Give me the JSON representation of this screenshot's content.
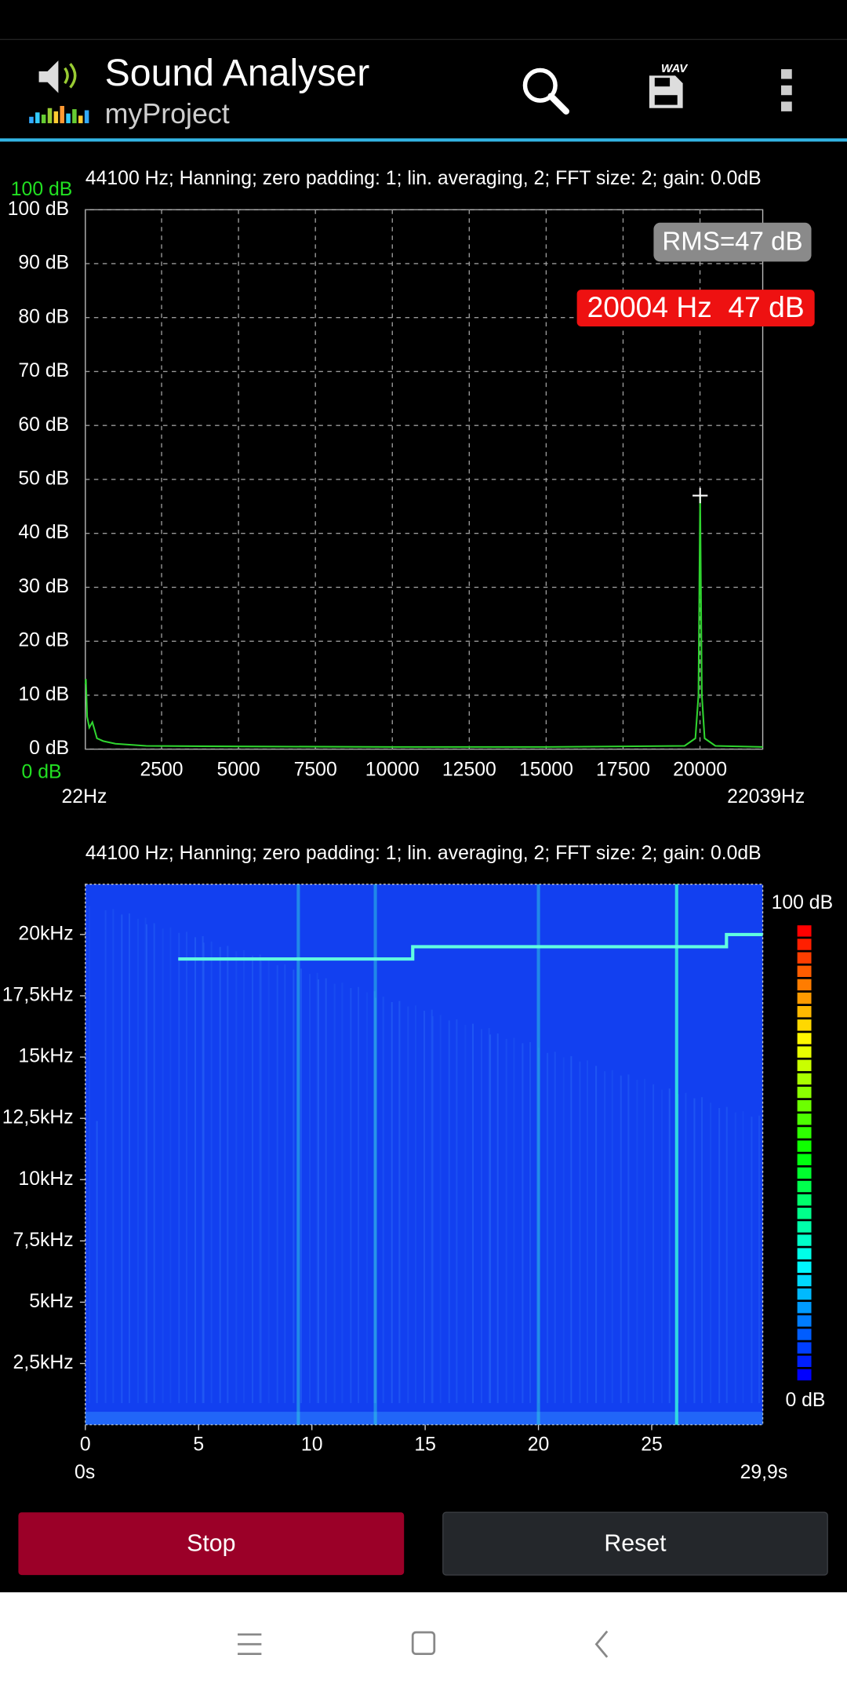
{
  "app_bar": {
    "title": "Sound Analyser",
    "subtitle": "myProject",
    "save_icon_label": "WAV"
  },
  "spectrum": {
    "info": "44100 Hz; Hanning; zero padding: 1; lin. averaging, 2; FFT size: 2; gain: 0.0dB",
    "scale_top": "100 dB",
    "scale_bottom": "0 dB",
    "ylim": [
      0,
      100
    ],
    "yticks": [
      {
        "value": 0,
        "label": "0 dB"
      },
      {
        "value": 10,
        "label": "10 dB"
      },
      {
        "value": 20,
        "label": "20 dB"
      },
      {
        "value": 30,
        "label": "30 dB"
      },
      {
        "value": 40,
        "label": "40 dB"
      },
      {
        "value": 50,
        "label": "50 dB"
      },
      {
        "value": 60,
        "label": "60 dB"
      },
      {
        "value": 70,
        "label": "70 dB"
      },
      {
        "value": 80,
        "label": "80 dB"
      },
      {
        "value": 90,
        "label": "90 dB"
      },
      {
        "value": 100,
        "label": "100 dB"
      }
    ],
    "xlim": [
      22,
      22039
    ],
    "xticks": [
      2500,
      5000,
      7500,
      10000,
      12500,
      15000,
      17500,
      20000
    ],
    "x_min_label": "22Hz",
    "x_max_label": "22039Hz",
    "rms_label": "RMS=47 dB",
    "peak_label": "20004 Hz  47 dB",
    "peak": {
      "x": 20004,
      "y": 47
    },
    "color": "#2fd42f",
    "x": [
      22,
      40,
      80,
      150,
      250,
      400,
      600,
      1000,
      2000,
      5000,
      10000,
      15000,
      19500,
      19850,
      19950,
      20004,
      20060,
      20150,
      20500,
      22039
    ],
    "y": [
      12,
      13,
      6,
      4,
      5,
      2,
      1.5,
      1,
      0.6,
      0.5,
      0.4,
      0.4,
      0.6,
      2,
      10,
      47,
      10,
      2,
      0.6,
      0.4
    ]
  },
  "spectrogram": {
    "info": "44100 Hz; Hanning; zero padding: 1; lin. averaging, 2; FFT size: 2; gain: 0.0dB",
    "ylim": [
      0,
      22050
    ],
    "yticks": [
      {
        "value": 2500,
        "label": "2,5kHz"
      },
      {
        "value": 5000,
        "label": "5kHz"
      },
      {
        "value": 7500,
        "label": "7,5kHz"
      },
      {
        "value": 10000,
        "label": "10kHz"
      },
      {
        "value": 12500,
        "label": "12,5kHz"
      },
      {
        "value": 15000,
        "label": "15kHz"
      },
      {
        "value": 17500,
        "label": "17,5kHz"
      },
      {
        "value": 20000,
        "label": "20kHz"
      }
    ],
    "xlim": [
      0,
      29.9
    ],
    "xticks": [
      0,
      5,
      10,
      15,
      20,
      25
    ],
    "x_min_label": "0s",
    "x_max_label": "29,9s",
    "scale_top": "100 dB",
    "scale_bottom": "0 dB",
    "tone": {
      "x": [
        4.1,
        14.45,
        14.45,
        28.3,
        28.3,
        29.9
      ],
      "y": [
        19000,
        19000,
        19500,
        19500,
        20000,
        20000
      ]
    },
    "transients_s": [
      9.4,
      12.8,
      20.0,
      26.1
    ]
  },
  "buttons": {
    "stop": "Stop",
    "reset": "Reset"
  }
}
